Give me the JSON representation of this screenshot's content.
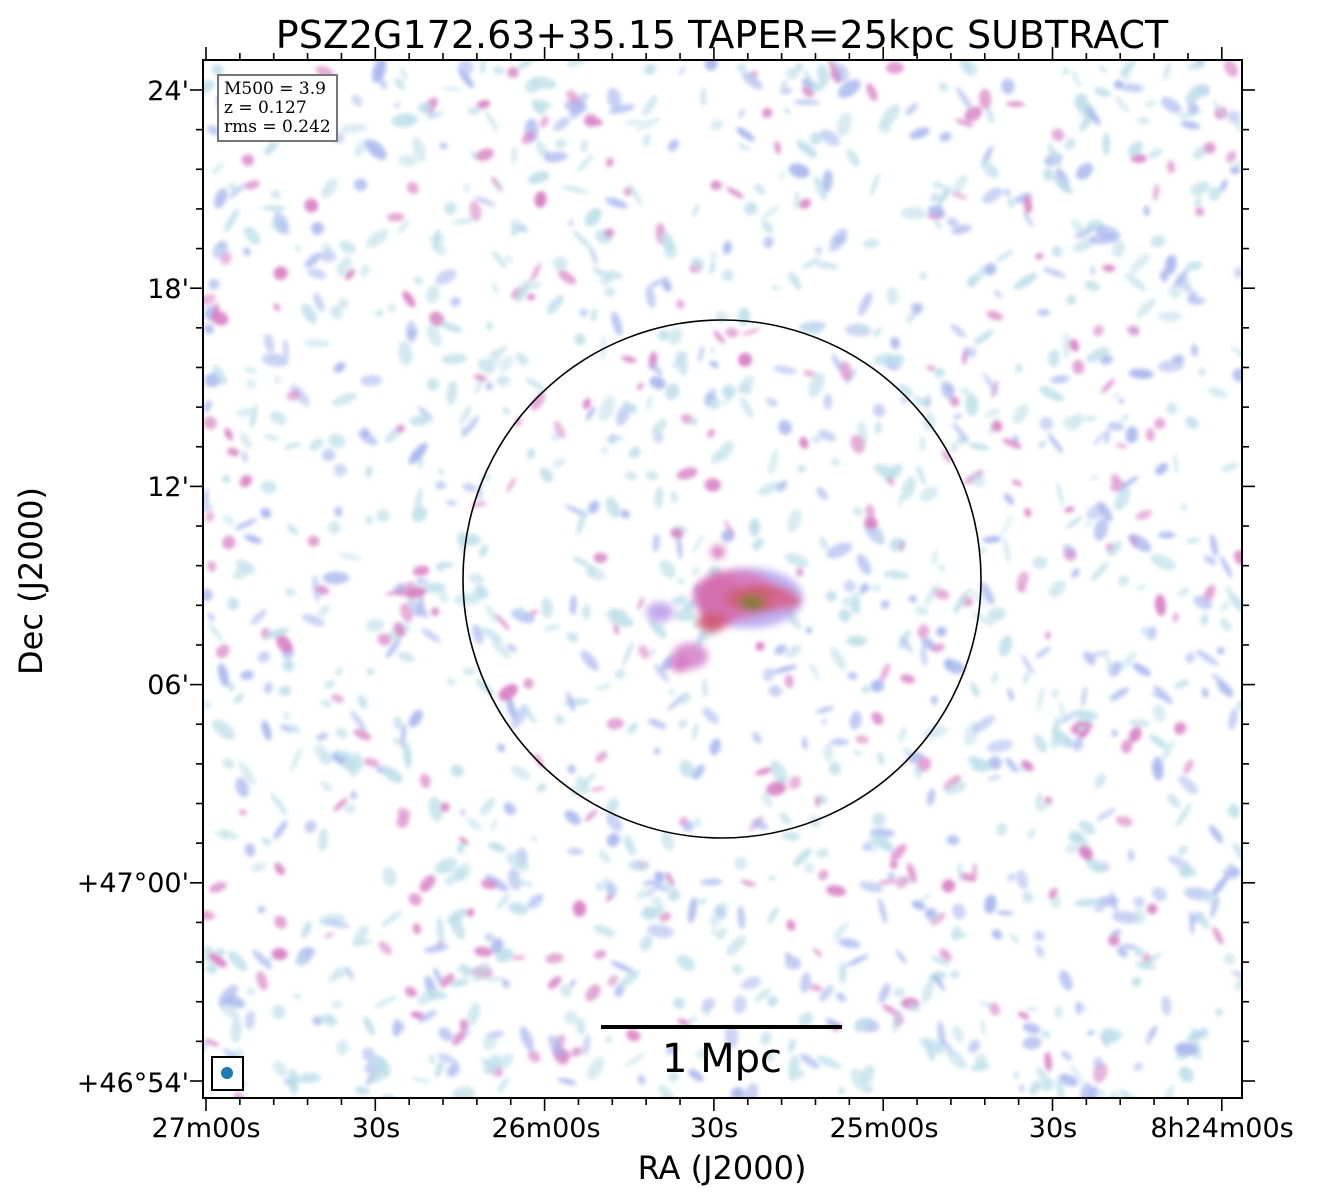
{
  "title": "PSZ2G172.63+35.15 TAPER=25kpc SUBTRACT",
  "info_box": {
    "m500": "M500 = 3.9",
    "z": "z = 0.127",
    "rms": "rms = 0.242"
  },
  "x_axis": {
    "label": "RA (J2000)",
    "ticks": [
      "27m00s",
      "30s",
      "26m00s",
      "30s",
      "25m00s",
      "30s",
      "8h24m00s"
    ]
  },
  "y_axis": {
    "label": "Dec (J2000)",
    "ticks": [
      "24'",
      "18'",
      "12'",
      "06'",
      "+47°00'",
      "+46°54'"
    ]
  },
  "scale_bar": {
    "label": "1 Mpc"
  },
  "colors": {
    "noise_light": "#bfe0ea",
    "noise_blue": "#a9b8ee",
    "emission_pink": "#d77fc4",
    "emission_red": "#d0607a",
    "core_olive": "#8d7a40",
    "beam": "#1f77b4"
  }
}
